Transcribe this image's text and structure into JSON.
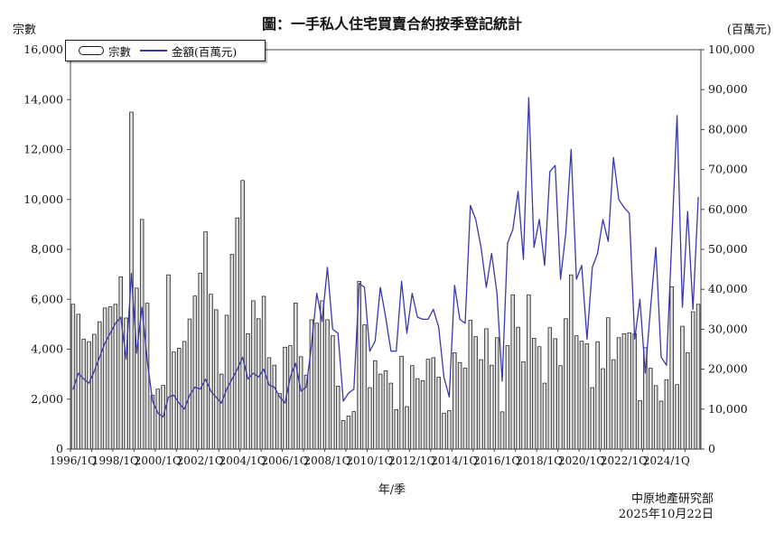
{
  "page": {
    "title": "圖：一手私人住宅買賣合約按季登記統計",
    "left_axis_unit": "宗數",
    "right_axis_unit": "(百萬元)",
    "x_axis_title": "年/季",
    "source": "中原地產研究部",
    "date": "2025年10月22日"
  },
  "legend": {
    "bars_label": "宗數",
    "line_label": "金額(百萬元)"
  },
  "colors": {
    "line": "#3939a8",
    "bar_border": "#1a1a1a",
    "bar_fill_edge": "#9e9e9e",
    "bar_fill_mid": "#f4f4f4",
    "axis": "#555555",
    "text": "#111111"
  },
  "chart_data": {
    "type": "bar",
    "subtype": "combo-bar-line",
    "title": "圖：一手私人住宅買賣合約按季登記統計",
    "xlabel": "年/季",
    "left_axis": {
      "min": 0,
      "max": 16000,
      "step": 2000,
      "unit": "宗數"
    },
    "right_axis": {
      "min": 0,
      "max": 100000,
      "step": 10000,
      "unit": "百萬元"
    },
    "grid": false,
    "legend_position": "top-left-inside",
    "x_tick_every": 8,
    "x_tick_labels": [
      "1996/1Q",
      "1998/1Q",
      "2000/1Q",
      "2002/1Q",
      "2004/1Q",
      "2006/1Q",
      "2008/1Q",
      "2010/1Q",
      "2012/1Q",
      "2014/1Q",
      "2016/1Q",
      "2018/1Q",
      "2020/1Q",
      "2022/1Q",
      "2024/1Q"
    ],
    "categories": [
      "1996/1Q",
      "1996/2Q",
      "1996/3Q",
      "1996/4Q",
      "1997/1Q",
      "1997/2Q",
      "1997/3Q",
      "1997/4Q",
      "1998/1Q",
      "1998/2Q",
      "1998/3Q",
      "1998/4Q",
      "1999/1Q",
      "1999/2Q",
      "1999/3Q",
      "1999/4Q",
      "2000/1Q",
      "2000/2Q",
      "2000/3Q",
      "2000/4Q",
      "2001/1Q",
      "2001/2Q",
      "2001/3Q",
      "2001/4Q",
      "2002/1Q",
      "2002/2Q",
      "2002/3Q",
      "2002/4Q",
      "2003/1Q",
      "2003/2Q",
      "2003/3Q",
      "2003/4Q",
      "2004/1Q",
      "2004/2Q",
      "2004/3Q",
      "2004/4Q",
      "2005/1Q",
      "2005/2Q",
      "2005/3Q",
      "2005/4Q",
      "2006/1Q",
      "2006/2Q",
      "2006/3Q",
      "2006/4Q",
      "2007/1Q",
      "2007/2Q",
      "2007/3Q",
      "2007/4Q",
      "2008/1Q",
      "2008/2Q",
      "2008/3Q",
      "2008/4Q",
      "2009/1Q",
      "2009/2Q",
      "2009/3Q",
      "2009/4Q",
      "2010/1Q",
      "2010/2Q",
      "2010/3Q",
      "2010/4Q",
      "2011/1Q",
      "2011/2Q",
      "2011/3Q",
      "2011/4Q",
      "2012/1Q",
      "2012/2Q",
      "2012/3Q",
      "2012/4Q",
      "2013/1Q",
      "2013/2Q",
      "2013/3Q",
      "2013/4Q",
      "2014/1Q",
      "2014/2Q",
      "2014/3Q",
      "2014/4Q",
      "2015/1Q",
      "2015/2Q",
      "2015/3Q",
      "2015/4Q",
      "2016/1Q",
      "2016/2Q",
      "2016/3Q",
      "2016/4Q",
      "2017/1Q",
      "2017/2Q",
      "2017/3Q",
      "2017/4Q",
      "2018/1Q",
      "2018/2Q",
      "2018/3Q",
      "2018/4Q",
      "2019/1Q",
      "2019/2Q",
      "2019/3Q",
      "2019/4Q",
      "2020/1Q",
      "2020/2Q",
      "2020/3Q",
      "2020/4Q",
      "2021/1Q",
      "2021/2Q",
      "2021/3Q",
      "2021/4Q",
      "2022/1Q",
      "2022/2Q",
      "2022/3Q",
      "2022/4Q",
      "2023/1Q",
      "2023/2Q",
      "2023/3Q",
      "2023/4Q",
      "2024/1Q",
      "2024/2Q",
      "2024/3Q",
      "2024/4Q",
      "2025/1Q",
      "2025/2Q",
      "2025/3Q"
    ],
    "series": [
      {
        "name": "宗數",
        "type": "bar",
        "axis": "left",
        "values": [
          5800,
          5400,
          4400,
          4300,
          4600,
          5100,
          5650,
          5700,
          5800,
          6900,
          5250,
          13500,
          6450,
          9200,
          5840,
          2150,
          2400,
          2550,
          6980,
          3890,
          4040,
          4310,
          5210,
          6130,
          7050,
          8700,
          6200,
          5580,
          3000,
          5360,
          7800,
          9260,
          10760,
          4620,
          5940,
          5220,
          6120,
          3660,
          3360,
          2220,
          4080,
          4140,
          5850,
          3700,
          2960,
          5180,
          5040,
          5940,
          5180,
          4540,
          2520,
          1140,
          1320,
          1500,
          6720,
          4980,
          2460,
          3540,
          3000,
          3140,
          2640,
          1580,
          3720,
          1700,
          3340,
          2820,
          2740,
          3600,
          3660,
          2880,
          1440,
          1540,
          3860,
          3460,
          3240,
          5160,
          4500,
          3580,
          4820,
          3360,
          4460,
          1490,
          4140,
          6180,
          4880,
          3500,
          6180,
          4440,
          4100,
          2640,
          4860,
          4420,
          3340,
          5220,
          6980,
          4540,
          4320,
          4220,
          2460,
          4300,
          3220,
          5260,
          3580,
          4460,
          4620,
          4660,
          4620,
          1940,
          4060,
          3240,
          2540,
          1920,
          2780,
          6500,
          2580,
          4920,
          3860,
          5500,
          5800
        ]
      },
      {
        "name": "金額(百萬元)",
        "type": "line",
        "axis": "right",
        "values": [
          15000,
          19000,
          17500,
          16500,
          19500,
          23000,
          26500,
          29000,
          31500,
          33000,
          22500,
          44000,
          24000,
          35500,
          22000,
          12000,
          9000,
          8000,
          13000,
          13500,
          11500,
          10000,
          13500,
          15500,
          15000,
          17500,
          14500,
          13000,
          11500,
          15000,
          17500,
          20000,
          23000,
          17500,
          19000,
          18000,
          20000,
          16000,
          15500,
          13000,
          11500,
          18000,
          21500,
          14500,
          15500,
          26000,
          39000,
          32000,
          45500,
          30000,
          29000,
          12000,
          14000,
          15000,
          41500,
          40500,
          24500,
          27000,
          40500,
          33000,
          24500,
          24500,
          42000,
          29000,
          39000,
          33000,
          32500,
          32500,
          35000,
          30500,
          18000,
          13000,
          41000,
          32500,
          31500,
          61000,
          57500,
          50500,
          40500,
          49000,
          39000,
          17000,
          51500,
          55000,
          64500,
          47500,
          88000,
          50500,
          57500,
          46000,
          69500,
          71000,
          42500,
          54000,
          75000,
          42500,
          46000,
          27500,
          45500,
          49000,
          57500,
          52000,
          73000,
          62500,
          60500,
          59000,
          27500,
          37500,
          19000,
          35500,
          50500,
          23000,
          21000,
          52000,
          83500,
          35500,
          59500,
          35000,
          63000
        ]
      }
    ]
  }
}
